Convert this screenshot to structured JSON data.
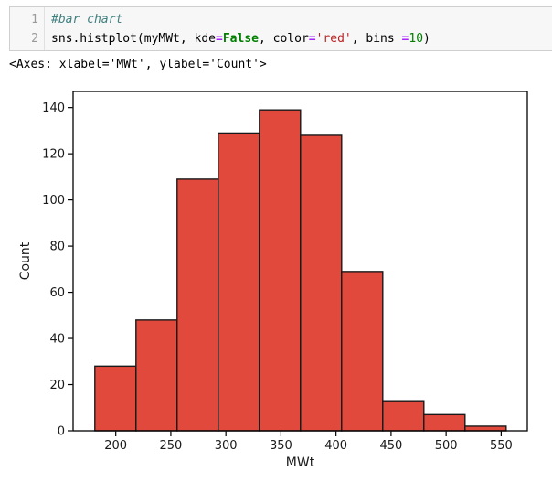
{
  "notebook": {
    "cell": {
      "line_numbers": [
        "1",
        "2"
      ],
      "lines": [
        {
          "tokens": [
            {
              "t": "#bar chart",
              "c": "comment"
            }
          ]
        },
        {
          "tokens": [
            {
              "t": "sns.histplot(myMWt, kde",
              "c": "plain"
            },
            {
              "t": "=",
              "c": "op"
            },
            {
              "t": "False",
              "c": "kw"
            },
            {
              "t": ", color",
              "c": "plain"
            },
            {
              "t": "=",
              "c": "op"
            },
            {
              "t": "'red'",
              "c": "str"
            },
            {
              "t": ", bins ",
              "c": "plain"
            },
            {
              "t": "=",
              "c": "op"
            },
            {
              "t": "10",
              "c": "num"
            },
            {
              "t": ")",
              "c": "plain"
            }
          ]
        }
      ]
    },
    "output_text": "<Axes: xlabel='MWt', ylabel='Count'>"
  },
  "chart_data": {
    "type": "bar",
    "subtype": "histogram",
    "title": "",
    "xlabel": "MWt",
    "ylabel": "Count",
    "bin_edges": [
      181,
      218.35,
      255.7,
      293.05,
      330.4,
      367.75,
      405.1,
      442.45,
      479.8,
      517.15,
      554.5
    ],
    "counts": [
      28,
      48,
      109,
      129,
      139,
      128,
      69,
      13,
      7,
      2
    ],
    "xlim": [
      161.25,
      573.75
    ],
    "ylim": [
      0,
      147
    ],
    "xticks": [
      200,
      250,
      300,
      350,
      400,
      450,
      500,
      550
    ],
    "yticks": [
      0,
      20,
      40,
      60,
      80,
      100,
      120,
      140
    ],
    "grid": false,
    "legend": null,
    "bar_color": "#E0493C",
    "bar_edge_color": "#1a1a1a",
    "spine_color": "#000000"
  }
}
